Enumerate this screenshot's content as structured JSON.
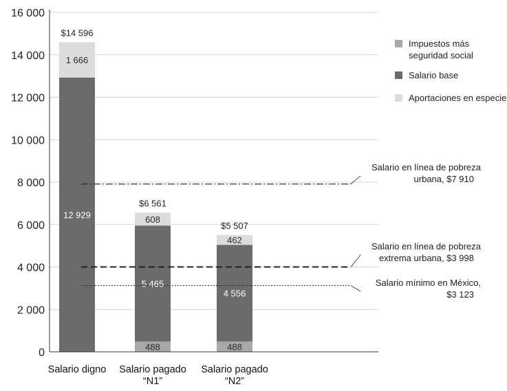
{
  "chart_data": {
    "type": "bar",
    "stacked": true,
    "categories": [
      "Salario digno",
      "Salario pagado “N1”",
      "Salario pagado “N2”"
    ],
    "category_lines": [
      [
        "Salario digno"
      ],
      [
        "Salario pagado",
        "“N1”"
      ],
      [
        "Salario pagado",
        "“N2”"
      ]
    ],
    "series": [
      {
        "name": "Impuestos más seguridad social",
        "legend_lines": [
          "Impuestos más",
          "seguridad social"
        ],
        "color": "#a9a9a9",
        "values": [
          0,
          488,
          488
        ],
        "labels": [
          "",
          "488",
          "488"
        ]
      },
      {
        "name": "Salario base",
        "legend_lines": [
          "Salario base"
        ],
        "color": "#6b6b6b",
        "values": [
          12929,
          5465,
          4556
        ],
        "labels": [
          "12 929",
          "5 465",
          "4 556"
        ]
      },
      {
        "name": "Aportaciones en especie",
        "legend_lines": [
          "Aportaciones en especie"
        ],
        "color": "#dcdcdc",
        "values": [
          1666,
          608,
          462
        ],
        "labels": [
          "1 666",
          "608",
          "462"
        ]
      }
    ],
    "totals": [
      "$14 596",
      "$6 561",
      "$5 507"
    ],
    "ylim": [
      0,
      16000
    ],
    "yticks": [
      0,
      2000,
      4000,
      6000,
      8000,
      10000,
      12000,
      14000,
      16000
    ],
    "ytick_labels": [
      "0",
      "2 000",
      "4 000",
      "6 000",
      "8 000",
      "10 000",
      "12 000",
      "14 000",
      "16 000"
    ],
    "grid": true,
    "legend_position": "top-right",
    "reference_lines": [
      {
        "value": 7910,
        "style": "dash-dot",
        "label_lines": [
          "Salario en línea de pobreza",
          "urbana, $7 910"
        ]
      },
      {
        "value": 3998,
        "style": "dashed",
        "label_lines": [
          "Salario en línea de pobreza",
          "extrema urbana, $3 998"
        ]
      },
      {
        "value": 3123,
        "style": "dotted",
        "label_lines": [
          "Salario mínimo en México,",
          "$3 123"
        ]
      }
    ],
    "title": "",
    "xlabel": "",
    "ylabel": ""
  }
}
